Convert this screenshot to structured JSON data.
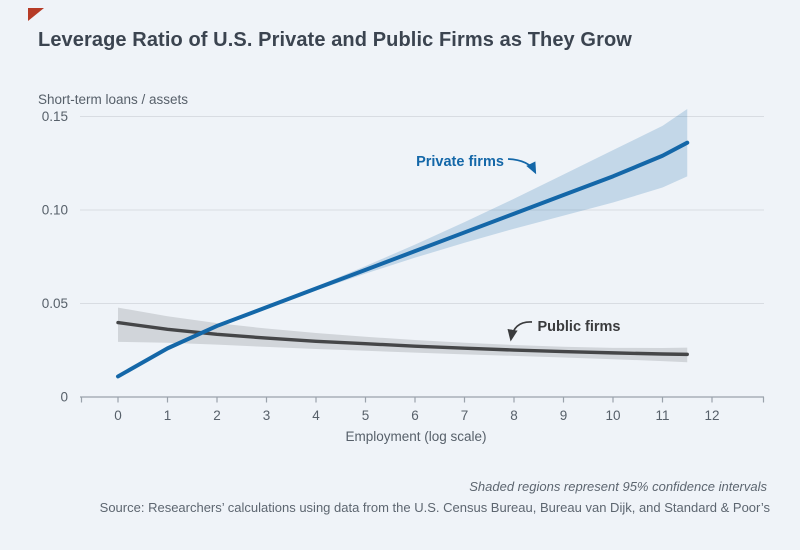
{
  "page": {
    "title": "Leverage Ratio of U.S. Private and Public Firms as They Grow",
    "background_color": "#eff3f8",
    "corner_marker_color": "#b63b26"
  },
  "chart_data": {
    "type": "line",
    "title": "Leverage Ratio of U.S. Private and Public Firms as They Grow",
    "ylabel": "Short-term loans / assets",
    "xlabel": "Employment (log scale)",
    "xlim": [
      -0.75,
      13
    ],
    "ylim": [
      0,
      0.155
    ],
    "grid": "horizontal",
    "legend_position": "inline-annotations",
    "x_ticks": [
      0,
      1,
      2,
      3,
      4,
      5,
      6,
      7,
      8,
      9,
      10,
      11,
      12
    ],
    "y_ticks": [
      0,
      0.05,
      0.1,
      0.15
    ],
    "y_tick_labels": [
      "0",
      "0.05",
      "0.10",
      "0.15"
    ],
    "x": [
      0,
      1,
      2,
      3,
      4,
      5,
      6,
      7,
      8,
      9,
      10,
      11,
      11.5
    ],
    "series": [
      {
        "name": "Private firms",
        "color": "#1467a8",
        "band_color": "rgba(20,104,168,0.20)",
        "values": [
          0.011,
          0.026,
          0.038,
          0.048,
          0.058,
          0.068,
          0.078,
          0.088,
          0.098,
          0.108,
          0.118,
          0.129,
          0.136
        ],
        "ci_upper": [
          0.012,
          0.027,
          0.039,
          0.049,
          0.059,
          0.07,
          0.0815,
          0.0935,
          0.106,
          0.119,
          0.132,
          0.145,
          0.154
        ],
        "ci_lower": [
          0.01,
          0.025,
          0.037,
          0.047,
          0.057,
          0.066,
          0.0745,
          0.0825,
          0.09,
          0.097,
          0.104,
          0.112,
          0.118
        ]
      },
      {
        "name": "Public firms",
        "color": "#454648",
        "band_color": "rgba(90,95,100,0.20)",
        "values": [
          0.0398,
          0.0362,
          0.0335,
          0.0315,
          0.0298,
          0.0285,
          0.0272,
          0.0261,
          0.0251,
          0.0243,
          0.0236,
          0.023,
          0.0228
        ],
        "ci_upper": [
          0.0478,
          0.0432,
          0.0395,
          0.0366,
          0.0342,
          0.0322,
          0.0305,
          0.029,
          0.0278,
          0.0269,
          0.0263,
          0.0262,
          0.0264
        ],
        "ci_lower": [
          0.0295,
          0.029,
          0.028,
          0.0268,
          0.0257,
          0.0247,
          0.0237,
          0.0228,
          0.022,
          0.0211,
          0.0202,
          0.0192,
          0.0186
        ]
      }
    ],
    "annotations": [
      {
        "text": "Private firms",
        "color": "#1467a8",
        "points_to_series": "Private firms"
      },
      {
        "text": "Public firms",
        "color": "#3a3b3d",
        "points_to_series": "Public firms"
      }
    ]
  },
  "footer": {
    "note": "Shaded regions represent 95% confidence intervals",
    "source": "Source: Researchers’ calculations using data from the U.S. Census Bureau, Bureau van Dijk, and Standard & Poor’s"
  }
}
